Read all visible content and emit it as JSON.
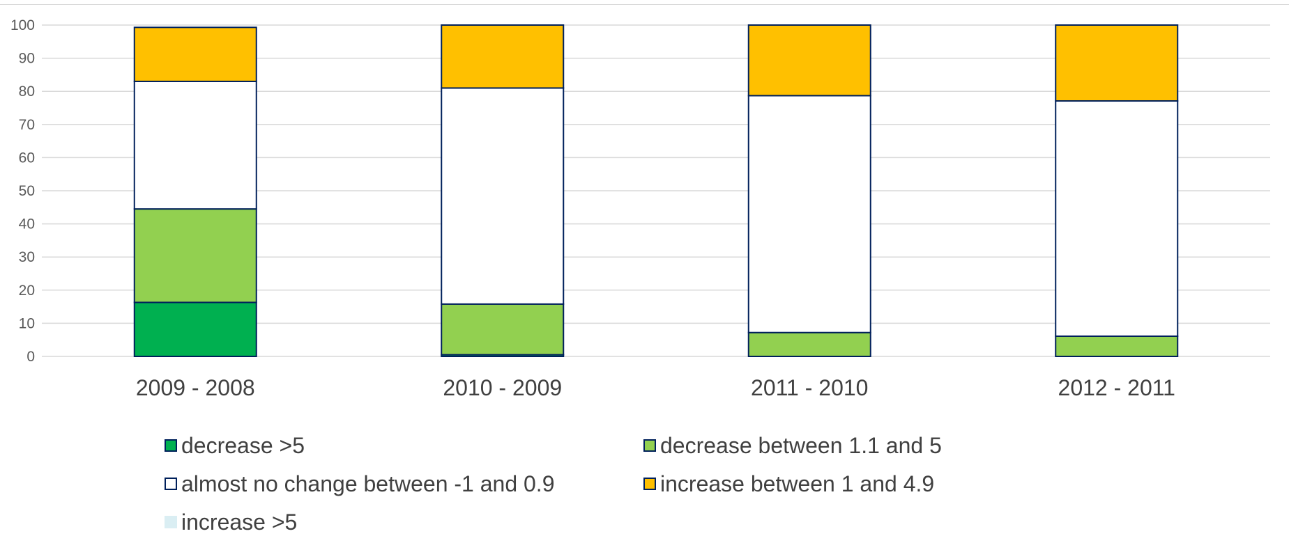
{
  "chart_data": {
    "type": "bar",
    "stacked": true,
    "categories": [
      "2009 - 2008",
      "2010 - 2009",
      "2011 - 2010",
      "2012 - 2011"
    ],
    "series": [
      {
        "name": "decrease >5",
        "values": [
          16.3,
          0.5,
          0,
          0
        ],
        "color": "#00b050",
        "border": "#00205b"
      },
      {
        "name": "decrease between 1.1 and 5",
        "values": [
          28.2,
          15.3,
          7.2,
          6.1
        ],
        "color": "#92d050",
        "border": "#00205b"
      },
      {
        "name": "almost no change between -1 and 0.9",
        "values": [
          38.5,
          65.2,
          71.5,
          71.0
        ],
        "color": "#ffffff",
        "border": "#00205b"
      },
      {
        "name": "increase between 1 and 4.9",
        "values": [
          16.3,
          19.0,
          21.3,
          22.9
        ],
        "color": "#ffc000",
        "border": "#00205b"
      },
      {
        "name": "increase >5",
        "values": [
          0,
          0,
          0,
          0
        ],
        "color": "#daeef3",
        "border": "#daeef3"
      }
    ],
    "y_ticks": [
      "0",
      "10",
      "20",
      "30",
      "40",
      "50",
      "60",
      "70",
      "80",
      "90",
      "100"
    ],
    "ylim": [
      0,
      100
    ],
    "grid": true,
    "legend_position": "bottom",
    "title": "",
    "xlabel": "",
    "ylabel": ""
  }
}
